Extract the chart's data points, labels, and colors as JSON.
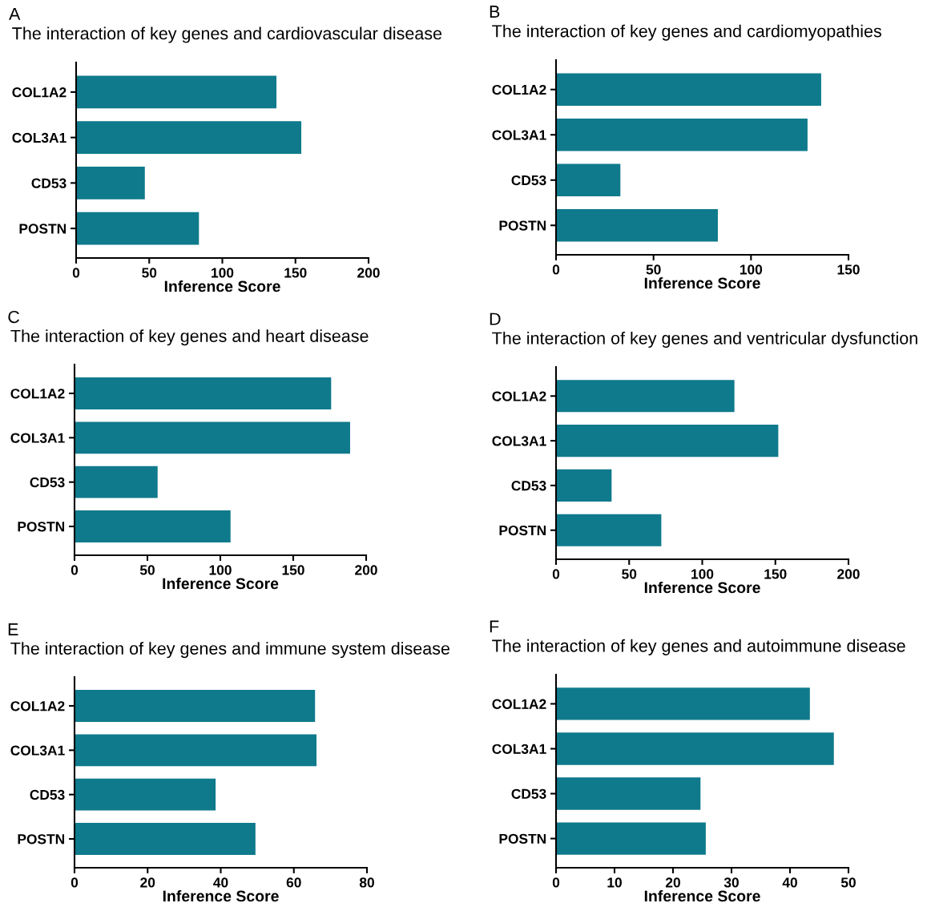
{
  "chart_data": [
    {
      "type": "bar",
      "orientation": "horizontal",
      "annotations": [
        "A"
      ],
      "title": "The interaction of key genes and cardiovascular disease",
      "xlabel": "Inference Score",
      "categories": [
        "COL1A2",
        "COL3A1",
        "CD53",
        "POSTN"
      ],
      "values": [
        137,
        154,
        47,
        84
      ],
      "color": "#0f7a8c",
      "xlim": [
        0,
        200
      ],
      "xticks": [
        0,
        50,
        100,
        150,
        200
      ],
      "grid": false
    },
    {
      "type": "bar",
      "orientation": "horizontal",
      "annotations": [
        "B"
      ],
      "title": "The interaction of key genes and cardiomyopathies",
      "xlabel": "Inference Score",
      "categories": [
        "COL1A2",
        "COL3A1",
        "CD53",
        "POSTN"
      ],
      "values": [
        136,
        129,
        33,
        83
      ],
      "color": "#0f7a8c",
      "xlim": [
        0,
        150
      ],
      "xticks": [
        0,
        50,
        100,
        150
      ],
      "grid": false
    },
    {
      "type": "bar",
      "orientation": "horizontal",
      "annotations": [
        "C"
      ],
      "title": "The interaction of key genes and heart disease",
      "xlabel": "Inference Score",
      "categories": [
        "COL1A2",
        "COL3A1",
        "CD53",
        "POSTN"
      ],
      "values": [
        176,
        189,
        57,
        107
      ],
      "color": "#0f7a8c",
      "xlim": [
        0,
        200
      ],
      "xticks": [
        0,
        50,
        100,
        150,
        200
      ],
      "grid": false
    },
    {
      "type": "bar",
      "orientation": "horizontal",
      "annotations": [
        "D"
      ],
      "title": "The interaction of key genes and ventricular dysfunction",
      "xlabel": "Inference Score",
      "categories": [
        "COL1A2",
        "COL3A1",
        "CD53",
        "POSTN"
      ],
      "values": [
        122,
        152,
        38,
        72
      ],
      "color": "#0f7a8c",
      "xlim": [
        0,
        200
      ],
      "xticks": [
        0,
        50,
        100,
        150,
        200
      ],
      "grid": false
    },
    {
      "type": "bar",
      "orientation": "horizontal",
      "annotations": [
        "E"
      ],
      "title": "The interaction of key genes and immune system disease",
      "xlabel": "Inference Score",
      "categories": [
        "COL1A2",
        "COL3A1",
        "CD53",
        "POSTN"
      ],
      "values": [
        65.8,
        66.2,
        38.6,
        49.5
      ],
      "color": "#0f7a8c",
      "xlim": [
        0,
        80
      ],
      "xticks": [
        0,
        20,
        40,
        60,
        80
      ],
      "grid": false
    },
    {
      "type": "bar",
      "orientation": "horizontal",
      "annotations": [
        "F"
      ],
      "title": "The interaction of key genes and autoimmune disease",
      "xlabel": "Inference Score",
      "categories": [
        "COL1A2",
        "COL3A1",
        "CD53",
        "POSTN"
      ],
      "values": [
        43.4,
        47.5,
        24.7,
        25.6
      ],
      "color": "#0f7a8c",
      "xlim": [
        0,
        50
      ],
      "xticks": [
        0,
        10,
        20,
        30,
        40,
        50
      ],
      "grid": false
    }
  ]
}
